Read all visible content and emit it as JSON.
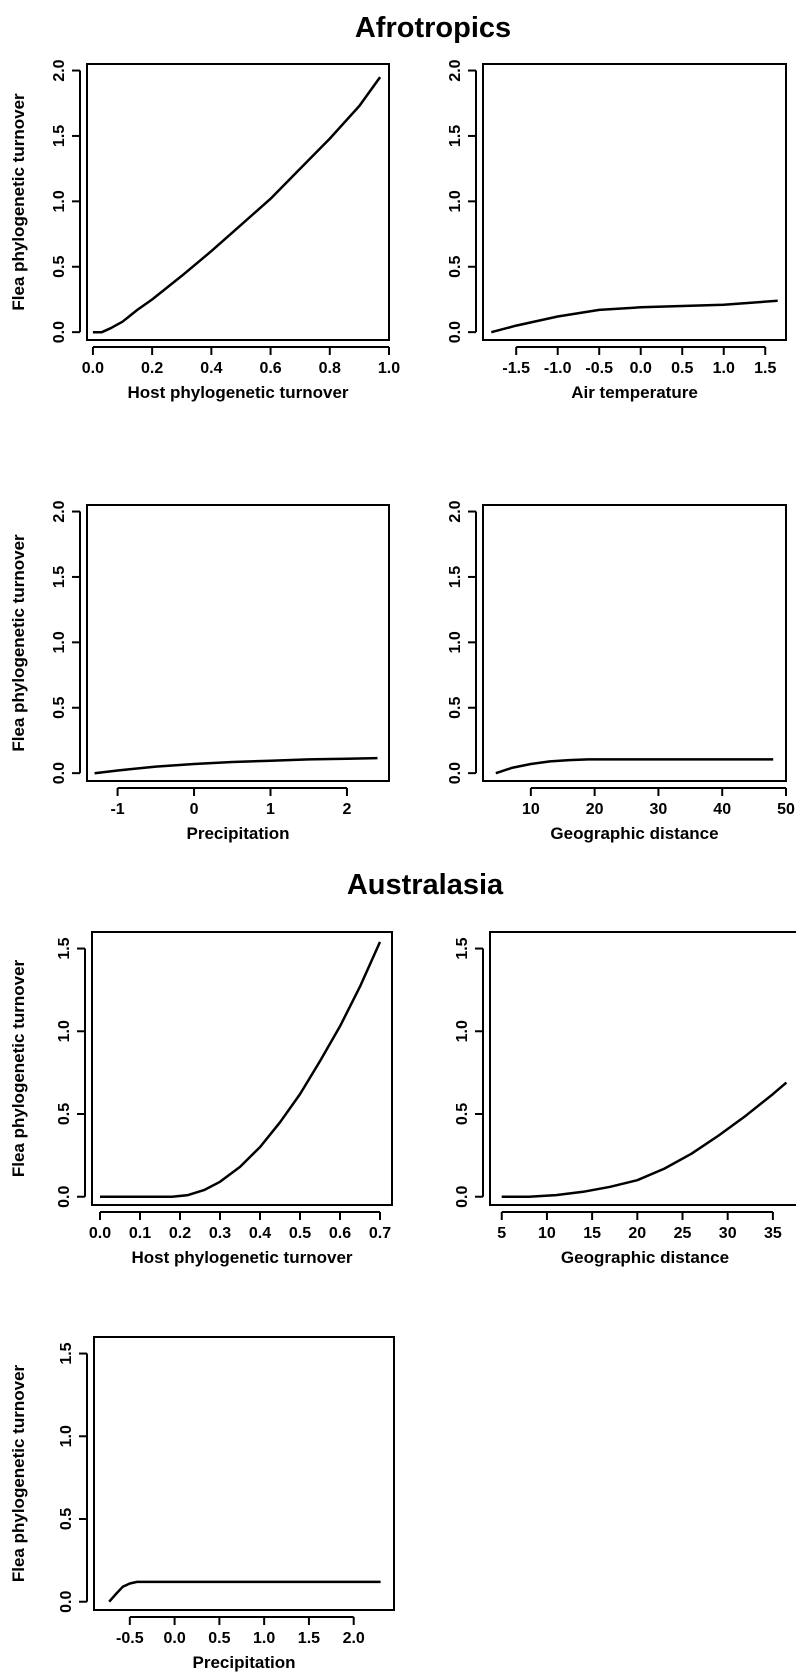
{
  "sections": [
    {
      "title": "Afrotropics"
    },
    {
      "title": "Australasia"
    }
  ],
  "chart_data": [
    {
      "type": "line",
      "title": "",
      "region": "Afrotropics",
      "xlabel": "Host phylogenetic turnover",
      "ylabel": "Flea phylogenetic turnover",
      "xlim": [
        -0.02,
        1.0
      ],
      "ylim": [
        -0.06,
        2.05
      ],
      "xticks": [
        0.0,
        0.2,
        0.4,
        0.6,
        0.8,
        1.0
      ],
      "xtick_labels": [
        "0.0",
        "0.2",
        "0.4",
        "0.6",
        "0.8",
        "1.0"
      ],
      "yticks": [
        0.0,
        0.5,
        1.0,
        1.5,
        2.0
      ],
      "ytick_labels": [
        "0.0",
        "0.5",
        "1.0",
        "1.5",
        "2.0"
      ],
      "series": [
        {
          "x": [
            0.0,
            0.03,
            0.06,
            0.1,
            0.15,
            0.2,
            0.3,
            0.4,
            0.5,
            0.6,
            0.7,
            0.8,
            0.9,
            0.97
          ],
          "y": [
            0.0,
            0.0,
            0.03,
            0.08,
            0.17,
            0.25,
            0.43,
            0.62,
            0.82,
            1.02,
            1.25,
            1.48,
            1.73,
            1.95
          ]
        }
      ]
    },
    {
      "type": "line",
      "title": "",
      "region": "Afrotropics",
      "xlabel": "Air temperature",
      "ylabel": "",
      "xlim": [
        -1.9,
        1.75
      ],
      "ylim": [
        -0.06,
        2.05
      ],
      "xticks": [
        -1.5,
        -1.0,
        -0.5,
        0.0,
        0.5,
        1.0,
        1.5
      ],
      "xtick_labels": [
        "-1.5",
        "-1.0",
        "-0.5",
        "0.0",
        "0.5",
        "1.0",
        "1.5"
      ],
      "yticks": [
        0.0,
        0.5,
        1.0,
        1.5,
        2.0
      ],
      "ytick_labels": [
        "0.0",
        "0.5",
        "1.0",
        "1.5",
        "2.0"
      ],
      "series": [
        {
          "x": [
            -1.8,
            -1.5,
            -1.0,
            -0.5,
            0.0,
            0.5,
            1.0,
            1.65
          ],
          "y": [
            0.0,
            0.05,
            0.12,
            0.17,
            0.19,
            0.2,
            0.21,
            0.24
          ]
        }
      ]
    },
    {
      "type": "line",
      "title": "",
      "region": "Afrotropics",
      "xlabel": "Precipitation",
      "ylabel": "Flea phylogenetic turnover",
      "xlim": [
        -1.4,
        2.55
      ],
      "ylim": [
        -0.06,
        2.05
      ],
      "xticks": [
        -1,
        0,
        1,
        2
      ],
      "xtick_labels": [
        "-1",
        "0",
        "1",
        "2"
      ],
      "yticks": [
        0.0,
        0.5,
        1.0,
        1.5,
        2.0
      ],
      "ytick_labels": [
        "0.0",
        "0.5",
        "1.0",
        "1.5",
        "2.0"
      ],
      "series": [
        {
          "x": [
            -1.3,
            -1.0,
            -0.5,
            0.0,
            0.5,
            1.0,
            1.5,
            2.0,
            2.4
          ],
          "y": [
            0.0,
            0.02,
            0.05,
            0.07,
            0.085,
            0.095,
            0.105,
            0.11,
            0.115
          ]
        }
      ]
    },
    {
      "type": "line",
      "title": "",
      "region": "Afrotropics",
      "xlabel": "Geographic distance",
      "ylabel": "",
      "xlim": [
        2.5,
        50.0
      ],
      "ylim": [
        -0.06,
        2.05
      ],
      "xticks": [
        10,
        20,
        30,
        40,
        50
      ],
      "xtick_labels": [
        "10",
        "20",
        "30",
        "40",
        "50"
      ],
      "yticks": [
        0.0,
        0.5,
        1.0,
        1.5,
        2.0
      ],
      "ytick_labels": [
        "0.0",
        "0.5",
        "1.0",
        "1.5",
        "2.0"
      ],
      "series": [
        {
          "x": [
            4.5,
            7,
            10,
            13,
            16,
            19,
            22,
            30,
            40,
            48
          ],
          "y": [
            0.0,
            0.04,
            0.07,
            0.09,
            0.1,
            0.105,
            0.105,
            0.105,
            0.105,
            0.105
          ]
        }
      ]
    },
    {
      "type": "line",
      "title": "",
      "region": "Australasia",
      "xlabel": "Host phylogenetic turnover",
      "ylabel": "Flea phylogenetic turnover",
      "xlim": [
        -0.02,
        0.73
      ],
      "ylim": [
        -0.05,
        1.6
      ],
      "xticks": [
        0.0,
        0.1,
        0.2,
        0.3,
        0.4,
        0.5,
        0.6,
        0.7
      ],
      "xtick_labels": [
        "0.0",
        "0.1",
        "0.2",
        "0.3",
        "0.4",
        "0.5",
        "0.6",
        "0.7"
      ],
      "yticks": [
        0.0,
        0.5,
        1.0,
        1.5
      ],
      "ytick_labels": [
        "0.0",
        "0.5",
        "1.0",
        "1.5"
      ],
      "series": [
        {
          "x": [
            0.0,
            0.1,
            0.18,
            0.22,
            0.26,
            0.3,
            0.35,
            0.4,
            0.45,
            0.5,
            0.55,
            0.6,
            0.65,
            0.7
          ],
          "y": [
            0.0,
            0.0,
            0.0,
            0.01,
            0.04,
            0.09,
            0.18,
            0.3,
            0.45,
            0.62,
            0.82,
            1.03,
            1.27,
            1.54
          ]
        }
      ]
    },
    {
      "type": "line",
      "title": "",
      "region": "Australasia",
      "xlabel": "Geographic distance",
      "ylabel": "",
      "xlim": [
        3.7,
        38.0
      ],
      "ylim": [
        -0.05,
        1.6
      ],
      "xticks": [
        5,
        10,
        15,
        20,
        25,
        30,
        35
      ],
      "xtick_labels": [
        "5",
        "10",
        "15",
        "20",
        "25",
        "30",
        "35"
      ],
      "yticks": [
        0.0,
        0.5,
        1.0,
        1.5
      ],
      "ytick_labels": [
        "0.0",
        "0.5",
        "1.0",
        "1.5"
      ],
      "series": [
        {
          "x": [
            5,
            8,
            11,
            14,
            17,
            20,
            23,
            26,
            29,
            32,
            35,
            36.5
          ],
          "y": [
            0.0,
            0.0,
            0.01,
            0.03,
            0.06,
            0.1,
            0.17,
            0.26,
            0.37,
            0.49,
            0.62,
            0.69
          ]
        }
      ]
    },
    {
      "type": "line",
      "title": "",
      "region": "Australasia",
      "xlabel": "Precipitation",
      "ylabel": "Flea phylogenetic turnover",
      "xlim": [
        -0.9,
        2.45
      ],
      "ylim": [
        -0.05,
        1.6
      ],
      "xticks": [
        -0.5,
        0.0,
        0.5,
        1.0,
        1.5,
        2.0
      ],
      "xtick_labels": [
        "-0.5",
        "0.0",
        "0.5",
        "1.0",
        "1.5",
        "2.0"
      ],
      "yticks": [
        0.0,
        0.5,
        1.0,
        1.5
      ],
      "ytick_labels": [
        "0.0",
        "0.5",
        "1.0",
        "1.5"
      ],
      "series": [
        {
          "x": [
            -0.73,
            -0.65,
            -0.58,
            -0.5,
            -0.42,
            -0.35,
            0.0,
            0.5,
            1.0,
            1.5,
            2.0,
            2.3
          ],
          "y": [
            0.0,
            0.05,
            0.09,
            0.11,
            0.12,
            0.12,
            0.12,
            0.12,
            0.12,
            0.12,
            0.12,
            0.12
          ]
        }
      ]
    }
  ]
}
